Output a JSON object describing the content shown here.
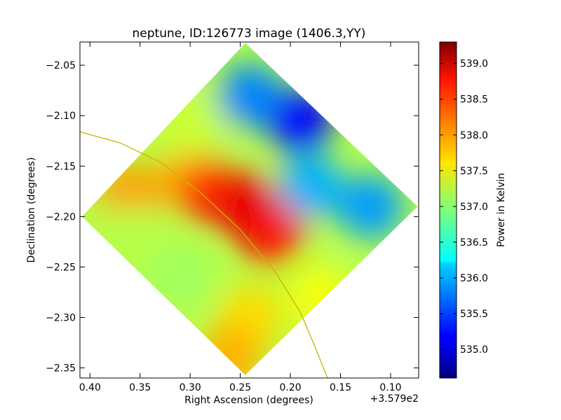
{
  "chart_data": {
    "type": "heatmap",
    "title": "neptune, ID:126773 image (1406.3,YY)",
    "xlabel": "Right Ascension (degrees)",
    "ylabel": "Declination (degrees)",
    "x_offset_label": "+3.579e2",
    "x_reversed": true,
    "xlim": [
      0.41,
      0.072
    ],
    "ylim": [
      -2.36,
      -2.027
    ],
    "x_ticks": [
      {
        "value": 0.4,
        "label": "0.40"
      },
      {
        "value": 0.35,
        "label": "0.35"
      },
      {
        "value": 0.3,
        "label": "0.30"
      },
      {
        "value": 0.25,
        "label": "0.25"
      },
      {
        "value": 0.2,
        "label": "0.20"
      },
      {
        "value": 0.15,
        "label": "0.15"
      },
      {
        "value": 0.1,
        "label": "0.10"
      }
    ],
    "y_ticks": [
      {
        "value": -2.05,
        "label": "−2.05"
      },
      {
        "value": -2.1,
        "label": "−2.10"
      },
      {
        "value": -2.15,
        "label": "−2.15"
      },
      {
        "value": -2.2,
        "label": "−2.20"
      },
      {
        "value": -2.25,
        "label": "−2.25"
      },
      {
        "value": -2.3,
        "label": "−2.30"
      },
      {
        "value": -2.35,
        "label": "−2.35"
      }
    ],
    "colorbar": {
      "label": "Power in Kelvin",
      "colormap": "jet",
      "range": [
        534.6,
        539.3
      ],
      "ticks": [
        {
          "value": 535.0,
          "label": "535.0"
        },
        {
          "value": 535.5,
          "label": "535.5"
        },
        {
          "value": 536.0,
          "label": "536.0"
        },
        {
          "value": 536.5,
          "label": "536.5"
        },
        {
          "value": 537.0,
          "label": "537.0"
        },
        {
          "value": 537.5,
          "label": "537.5"
        },
        {
          "value": 538.0,
          "label": "538.0"
        },
        {
          "value": 538.5,
          "label": "538.5"
        },
        {
          "value": 539.0,
          "label": "539.0"
        }
      ]
    },
    "footprint": {
      "shape": "diamond",
      "vertices": [
        {
          "ra": 0.245,
          "dec": -2.028
        },
        {
          "ra": 0.073,
          "dec": -2.19
        },
        {
          "ra": 0.245,
          "dec": -2.357
        },
        {
          "ra": 0.408,
          "dec": -2.2
        }
      ],
      "center": {
        "ra": 0.245,
        "dec": -2.19
      }
    },
    "regions": [
      {
        "ra": 0.24,
        "dec": -2.08,
        "value": 535.8
      },
      {
        "ra": 0.19,
        "dec": -2.105,
        "value": 535.2
      },
      {
        "ra": 0.12,
        "dec": -2.19,
        "value": 535.9
      },
      {
        "ra": 0.18,
        "dec": -2.17,
        "value": 536.0
      },
      {
        "ra": 0.36,
        "dec": -2.18,
        "value": 538.0
      },
      {
        "ra": 0.3,
        "dec": -2.16,
        "value": 537.9
      },
      {
        "ra": 0.28,
        "dec": -2.175,
        "value": 538.5
      },
      {
        "ra": 0.22,
        "dec": -2.215,
        "value": 538.6
      },
      {
        "ra": 0.245,
        "dec": -2.19,
        "value": 538.8
      },
      {
        "ra": 0.24,
        "dec": -2.3,
        "value": 537.7
      },
      {
        "ra": 0.26,
        "dec": -2.34,
        "value": 537.9
      },
      {
        "ra": 0.31,
        "dec": -2.26,
        "value": 537.1
      },
      {
        "ra": 0.3,
        "dec": -2.11,
        "value": 537.3
      },
      {
        "ra": 0.36,
        "dec": -2.22,
        "value": 537.2
      },
      {
        "ra": 0.17,
        "dec": -2.28,
        "value": 537.5
      }
    ],
    "overlay_curve": {
      "color": "#c8b400",
      "points": [
        {
          "ra": 0.41,
          "dec": -2.116
        },
        {
          "ra": 0.37,
          "dec": -2.127
        },
        {
          "ra": 0.33,
          "dec": -2.146
        },
        {
          "ra": 0.29,
          "dec": -2.176
        },
        {
          "ra": 0.25,
          "dec": -2.213
        },
        {
          "ra": 0.215,
          "dec": -2.255
        },
        {
          "ra": 0.19,
          "dec": -2.295
        },
        {
          "ra": 0.175,
          "dec": -2.33
        },
        {
          "ra": 0.163,
          "dec": -2.36
        }
      ]
    }
  }
}
